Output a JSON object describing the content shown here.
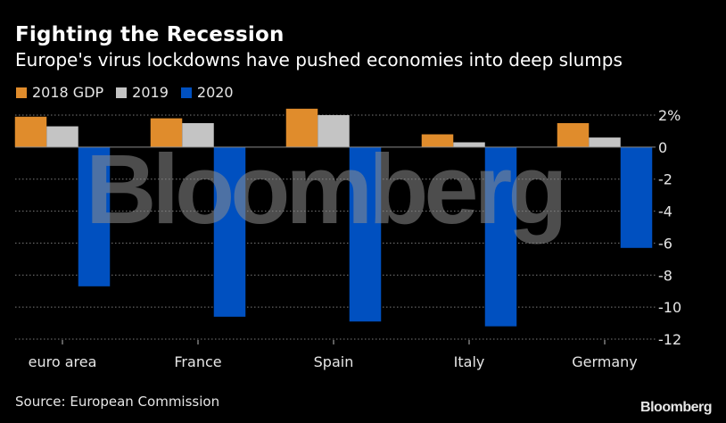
{
  "header": {
    "title": "Fighting the Recession",
    "subtitle": "Europe's virus lockdowns have pushed economies into deep slumps"
  },
  "footer": {
    "source": "Source: European Commission",
    "brand": "Bloomberg"
  },
  "watermark": "Bloomberg",
  "colors": {
    "background": "#000000",
    "2018 GDP": "#e08c2c",
    "2019": "#c4c4c4",
    "2020": "#0050c0",
    "gridline": "#7a7a7a"
  },
  "chart_data": {
    "type": "bar",
    "title": "Fighting the Recession",
    "subtitle": "Europe's virus lockdowns have pushed economies into deep slumps",
    "xlabel": "",
    "ylabel": "",
    "categories": [
      "euro area",
      "France",
      "Spain",
      "Italy",
      "Germany"
    ],
    "series": [
      {
        "name": "2018 GDP",
        "values": [
          1.9,
          1.8,
          2.4,
          0.8,
          1.5
        ]
      },
      {
        "name": "2019",
        "values": [
          1.3,
          1.5,
          2.0,
          0.3,
          0.6
        ]
      },
      {
        "name": "2020",
        "values": [
          -8.7,
          -10.6,
          -10.9,
          -11.2,
          -6.3
        ]
      }
    ],
    "ylim": [
      -12,
      2
    ],
    "yticks": [
      2,
      0,
      -2,
      -4,
      -6,
      -8,
      -10,
      -12
    ],
    "ytick_labels": [
      "2%",
      "0",
      "-2",
      "-4",
      "-6",
      "-8",
      "-10",
      "-12"
    ],
    "y_axis_position": "right",
    "grid": true,
    "legend_position": "top-left"
  }
}
